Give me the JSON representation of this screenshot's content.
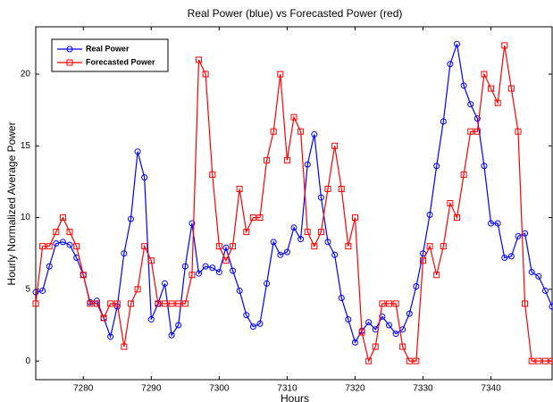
{
  "chart_data": {
    "type": "line",
    "title": "Real Power (blue) vs Forecasted Power (red)",
    "x_label": "Hours",
    "y_label": "Hourly Normalized Average Power",
    "x": [
      7273,
      7274,
      7275,
      7276,
      7277,
      7278,
      7279,
      7280,
      7281,
      7282,
      7283,
      7284,
      7285,
      7286,
      7287,
      7288,
      7289,
      7290,
      7291,
      7292,
      7293,
      7294,
      7295,
      7296,
      7297,
      7298,
      7299,
      7300,
      7301,
      7302,
      7303,
      7304,
      7305,
      7306,
      7307,
      7308,
      7309,
      7310,
      7311,
      7312,
      7313,
      7314,
      7315,
      7316,
      7317,
      7318,
      7319,
      7320,
      7321,
      7322,
      7323,
      7324,
      7325,
      7326,
      7327,
      7328,
      7329,
      7330,
      7331,
      7332,
      7333,
      7334,
      7335,
      7336,
      7337,
      7338,
      7339,
      7340,
      7341,
      7342,
      7343,
      7344,
      7345,
      7346,
      7347,
      7348,
      7349
    ],
    "series": [
      {
        "name": "Real Power",
        "color": "#0000ff",
        "marker": "circle",
        "values": [
          4.8,
          4.9,
          6.6,
          8.2,
          8.3,
          8.1,
          7.2,
          6.0,
          4.1,
          4.2,
          3.0,
          1.7,
          3.8,
          7.5,
          9.9,
          14.6,
          12.8,
          2.9,
          4.0,
          5.4,
          1.8,
          2.5,
          6.6,
          9.6,
          6.1,
          6.6,
          6.5,
          6.2,
          7.9,
          6.3,
          4.9,
          3.2,
          2.4,
          2.6,
          5.4,
          8.3,
          7.4,
          7.6,
          9.3,
          8.5,
          13.7,
          15.8,
          11.4,
          8.3,
          7.4,
          4.4,
          2.9,
          1.3,
          2.1,
          2.7,
          2.2,
          3.1,
          2.5,
          1.9,
          2.2,
          3.3,
          5.2,
          7.5,
          10.2,
          13.6,
          16.7,
          20.7,
          22.1,
          19.2,
          17.9,
          16.9,
          13.6,
          9.6,
          9.6,
          7.2,
          7.3,
          8.7,
          8.9,
          6.2,
          5.9,
          4.9,
          3.8
        ]
      },
      {
        "name": "Forecasted Power",
        "color": "#ff0000",
        "marker": "square",
        "values": [
          4,
          8,
          8,
          9,
          10,
          9,
          8,
          6,
          4,
          4,
          3,
          4,
          4,
          1,
          4,
          5,
          8,
          7,
          4,
          4,
          4,
          4,
          4,
          6,
          21,
          20,
          13,
          8,
          7,
          8,
          12,
          9,
          10,
          10,
          14,
          16,
          20,
          14,
          17,
          16,
          9,
          8,
          9,
          12,
          15,
          12,
          8,
          10,
          2,
          0,
          1,
          4,
          4,
          4,
          1,
          0,
          0,
          7,
          8,
          6,
          8,
          11,
          10,
          13,
          16,
          16,
          20,
          19,
          18,
          22,
          19,
          16,
          4,
          0,
          0,
          0,
          0
        ]
      }
    ],
    "xlim": [
      7273,
      7349
    ],
    "xticks": [
      7280,
      7290,
      7300,
      7310,
      7320,
      7330,
      7340
    ],
    "ylim": [
      -1.3,
      23.3
    ],
    "yticks": [
      0,
      5,
      10,
      15,
      20
    ],
    "legend": "upper left"
  }
}
